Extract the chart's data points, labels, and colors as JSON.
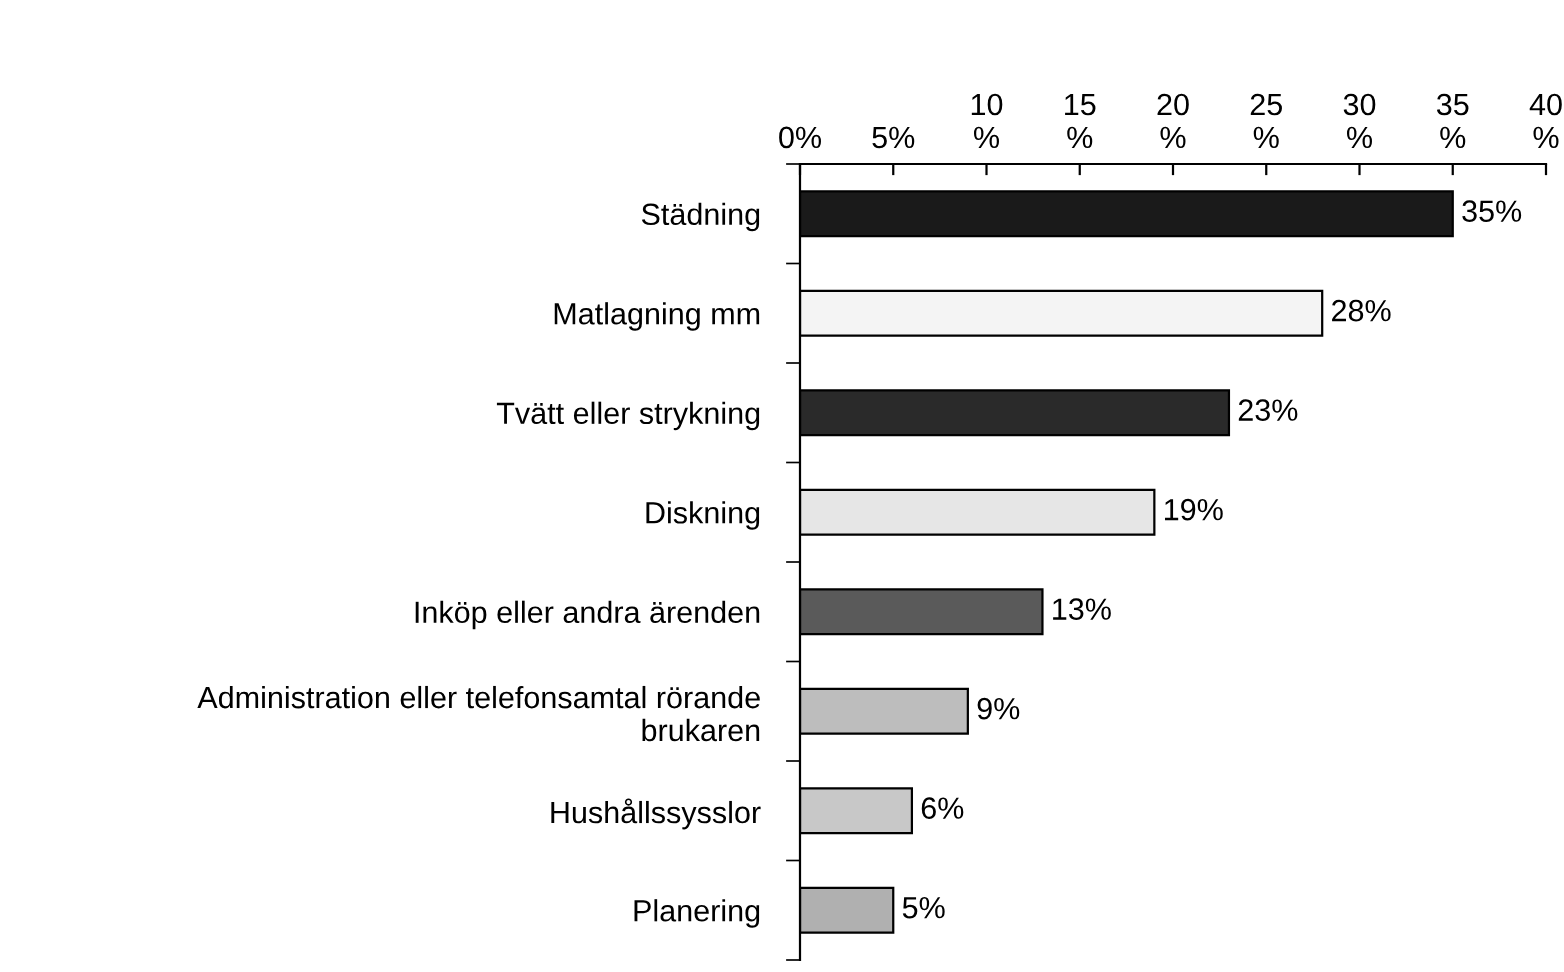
{
  "chart_data": {
    "type": "bar",
    "orientation": "horizontal",
    "categories": [
      "Städning",
      "Matlagning mm",
      "Tvätt eller strykning",
      "Diskning",
      "Inköp eller andra ärenden",
      "Administration eller telefonsamtal rörande\nbrukaren",
      "Hushållssysslor",
      "Planering"
    ],
    "values": [
      35,
      28,
      23,
      19,
      13,
      9,
      6,
      5
    ],
    "colors": [
      "#1a1a1a",
      "#f4f4f4",
      "#2a2a2a",
      "#e6e6e6",
      "#5a5a5a",
      "#bdbdbd",
      "#c8c8c8",
      "#b0b0b0"
    ],
    "value_labels": [
      "35%",
      "28%",
      "23%",
      "19%",
      "13%",
      "9%",
      "6%",
      "5%"
    ],
    "xlim": [
      0,
      40
    ],
    "xticks": [
      {
        "value": 0,
        "label": "0%"
      },
      {
        "value": 5,
        "label": "5%"
      },
      {
        "value": 10,
        "label": "10\n%"
      },
      {
        "value": 15,
        "label": "15\n%"
      },
      {
        "value": 20,
        "label": "20\n%"
      },
      {
        "value": 25,
        "label": "25\n%"
      },
      {
        "value": 30,
        "label": "30\n%"
      },
      {
        "value": 35,
        "label": "35\n%"
      },
      {
        "value": 40,
        "label": "40\n%"
      }
    ],
    "grid": false,
    "legend": false
  }
}
